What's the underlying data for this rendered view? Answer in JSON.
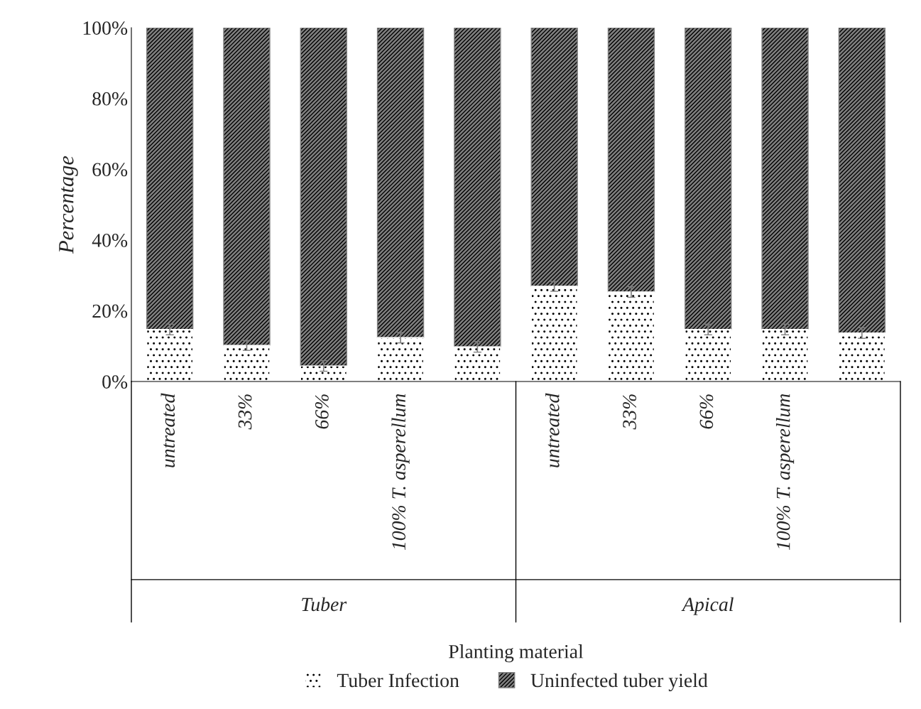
{
  "chart_data": {
    "type": "bar",
    "stacked": true,
    "categories": [
      "untreated",
      "33%",
      "66%",
      "100% T. asperellum",
      null,
      "untreated",
      "33%",
      "66%",
      "100% T. asperellum",
      null
    ],
    "series": [
      {
        "name": "Tuber Infection",
        "color": "#ffffff",
        "values": [
          14.7,
          10.2,
          4.4,
          12.4,
          9.8,
          26.9,
          25.3,
          14.7,
          14.7,
          13.7
        ],
        "errors": [
          1.5,
          1.4,
          1.5,
          1.5,
          1.5,
          1.4,
          1.5,
          1.5,
          1.5,
          1.5
        ]
      },
      {
        "name": "Uninfected tuber yield",
        "color": "#7f7f7f",
        "values": [
          85.3,
          89.8,
          95.6,
          87.6,
          90.2,
          73.1,
          74.7,
          85.3,
          85.3,
          86.3
        ]
      }
    ],
    "ylim": [
      0,
      100
    ],
    "yticks": [
      {
        "value": 0,
        "label": "0%"
      },
      {
        "value": 20,
        "label": "20%"
      },
      {
        "value": 40,
        "label": "40%"
      },
      {
        "value": 60,
        "label": "60%"
      },
      {
        "value": 80,
        "label": "80%"
      },
      {
        "value": 100,
        "label": "100%"
      }
    ],
    "ylabel": "Percentage",
    "xlabel": "Planting material",
    "annotations": [
      "Tuber",
      "Apical"
    ],
    "legend": "bottom",
    "grid": false
  }
}
